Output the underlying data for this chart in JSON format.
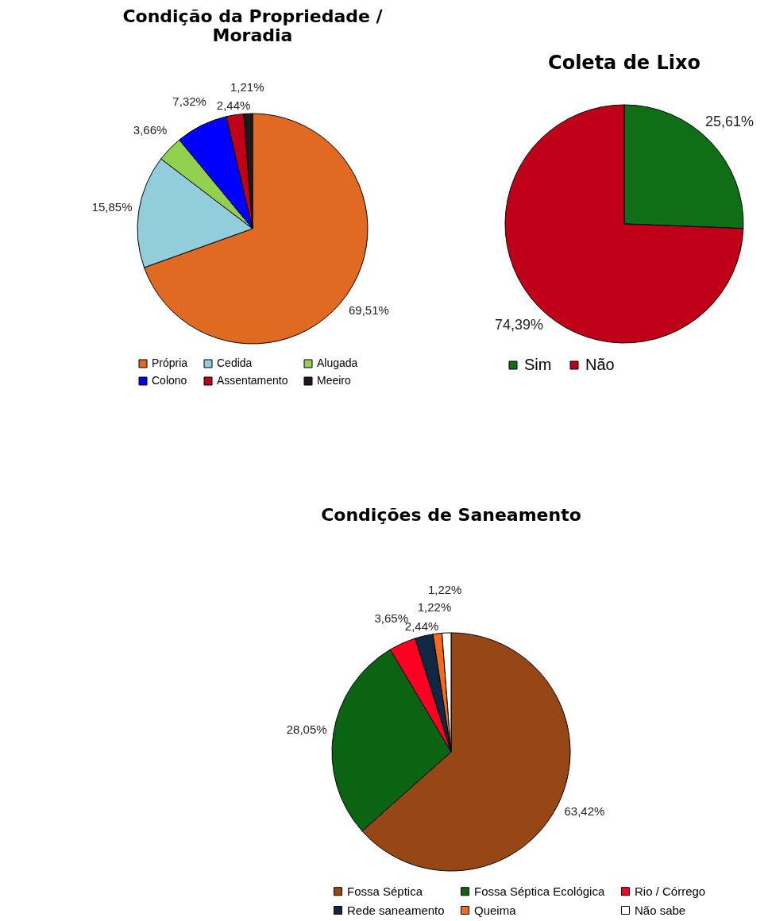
{
  "chart_data": [
    {
      "type": "pie",
      "title": "Condição da Propriedade / Moradia",
      "categories": [
        "Própria",
        "Cedida",
        "Alugada",
        "Colono",
        "Assentamento",
        "Meeiro"
      ],
      "values": [
        69.51,
        15.85,
        3.66,
        7.32,
        2.44,
        1.21
      ],
      "colors": [
        "#e06a22",
        "#92cddc",
        "#92d050",
        "#0000ff",
        "#c00018",
        "#1f1a17"
      ],
      "value_labels": [
        "69,51%",
        "15,85%",
        "3,66%",
        "7,32%",
        "2,44%",
        "1,21%"
      ],
      "legend": "bottom"
    },
    {
      "type": "pie",
      "title": "Coleta de Lixo",
      "categories": [
        "Sim",
        "Não"
      ],
      "values": [
        25.61,
        74.39
      ],
      "colors": [
        "#0f6e16",
        "#c00018"
      ],
      "value_labels": [
        "25,61%",
        "74,39%"
      ],
      "legend": "bottom"
    },
    {
      "type": "pie",
      "title": "Condições de Saneamento",
      "categories": [
        "Fossa Séptica",
        "Fossa Séptica Ecológica",
        "Rio / Córrego",
        "Rede saneamento",
        "Queima",
        "Não sabe"
      ],
      "values": [
        63.42,
        28.05,
        3.65,
        2.44,
        1.22,
        1.22
      ],
      "colors": [
        "#974715",
        "#0b6412",
        "#ff0022",
        "#112845",
        "#f26b1d",
        "#ffffff"
      ],
      "value_labels": [
        "63,42%",
        "28,05%",
        "3,65%",
        "2,44%",
        "1,22%",
        "1,22%"
      ],
      "legend": "bottom"
    }
  ]
}
